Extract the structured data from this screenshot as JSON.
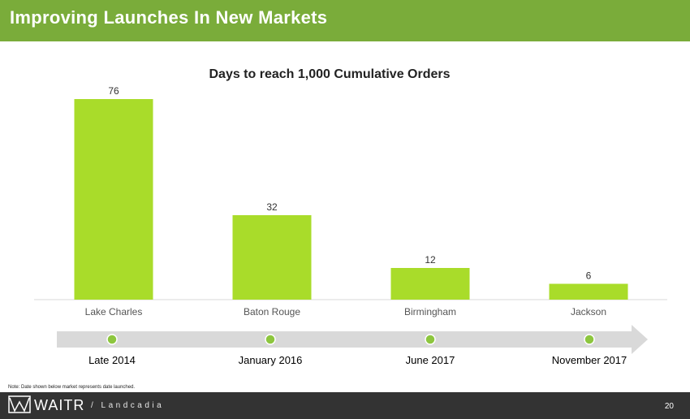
{
  "header": {
    "title": "Improving Launches In New Markets"
  },
  "chart_data": {
    "type": "bar",
    "title": "Days to reach 1,000 Cumulative Orders",
    "categories": [
      "Lake Charles",
      "Baton Rouge",
      "Birmingham",
      "Jackson"
    ],
    "values": [
      76,
      32,
      12,
      6
    ],
    "xlabel": "",
    "ylabel": "",
    "ylim": [
      0,
      76
    ],
    "grid": false,
    "data_labels": true,
    "bar_color": "#a9dc2a"
  },
  "timeline": {
    "dates": [
      "Late 2014",
      "January 2016",
      "June 2017",
      "November 2017"
    ],
    "marker_color": "#8dc63f",
    "arrow_color": "#d9d9d9"
  },
  "note": "Note: Date shown below market represents date launched.",
  "footer": {
    "brand": "WAITR",
    "partner": "/ Landcadia",
    "page_number": "20"
  },
  "colors": {
    "header_bg": "#7aac3a",
    "footer_bg": "#333333"
  }
}
